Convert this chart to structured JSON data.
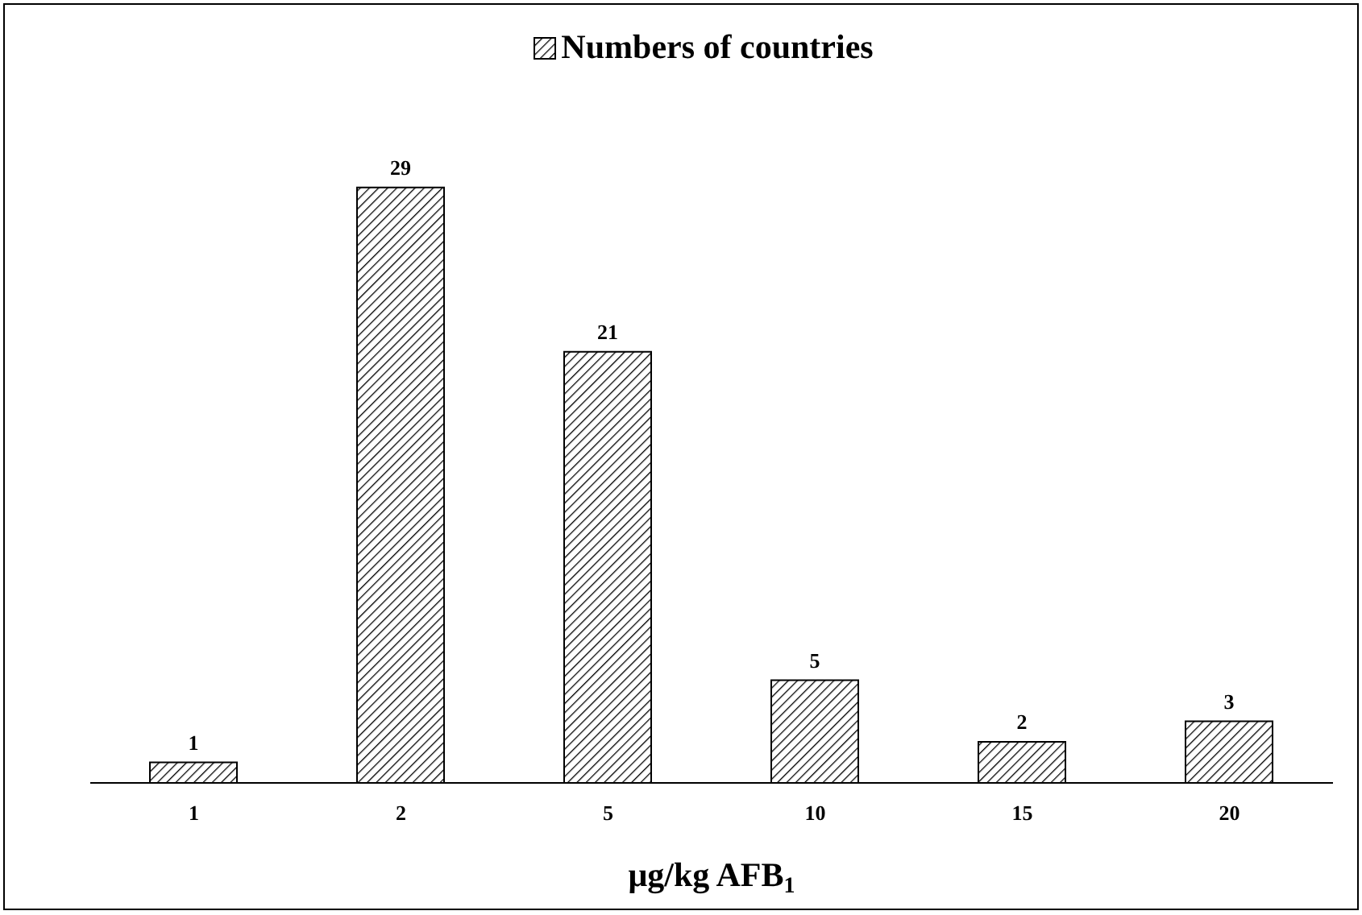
{
  "chart_data": {
    "type": "bar",
    "xlabel": "μg/kg AFB$_{1}$",
    "categories": [
      "1",
      "2",
      "5",
      "10",
      "15",
      "20"
    ],
    "series": [
      {
        "name": "Numbers of countries",
        "color": "#000000",
        "values": [
          1,
          29,
          21,
          5,
          2,
          3
        ]
      }
    ],
    "data_labels": true,
    "legend": "top",
    "grid": false
  }
}
